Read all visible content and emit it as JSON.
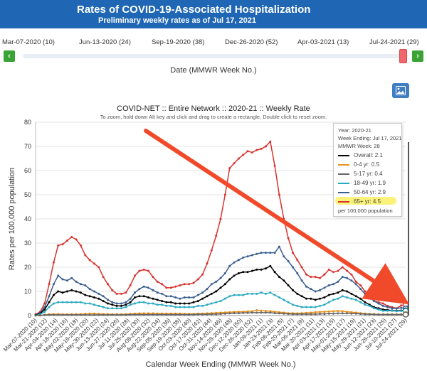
{
  "header": {
    "title": "Rates of COVID-19-Associated Hospitalization",
    "subtitle": "Preliminary weekly rates as of Jul 17, 2021"
  },
  "slider": {
    "week_labels": [
      "Mar-07-2020 (10)",
      "Jun-13-2020 (24)",
      "Sep-19-2020 (38)",
      "Dec-26-2020 (52)",
      "Apr-03-2021 (13)",
      "Jul-24-2021 (29)"
    ],
    "caption": "Date (MMWR Week No.)",
    "prev_icon": "chevron-left-icon",
    "next_icon": "chevron-right-icon",
    "handle_position": 1.0
  },
  "image_button_icon": "image-icon",
  "chart_title": "COVID-NET :: Entire Network :: 2020-21 :: Weekly Rate",
  "chart_subtitle": "To zoom, hold down Alt key and click and drag to create a rectangle. Double click to reset zoom.",
  "legend": {
    "year": "Year: 2020-21",
    "week_ending": "Week Ending: Jul 17, 2021",
    "mmwr_week": "MMWR Week: 28",
    "items": [
      {
        "label": "Overall:",
        "value": "2.1",
        "color": "#000000"
      },
      {
        "label": "0-4 yr:",
        "value": "0.5",
        "color": "#e8931e"
      },
      {
        "label": "5-17 yr:",
        "value": "0.4",
        "color": "#666666"
      },
      {
        "label": "18-49 yr:",
        "value": "1.9",
        "color": "#29a9c2"
      },
      {
        "label": "50-64 yr:",
        "value": "2.9",
        "color": "#3a5f8f"
      },
      {
        "label": "65+ yr:",
        "value": "4.5",
        "color": "#d7332e"
      }
    ],
    "footnote": "per 100,000 population",
    "highlight_color": "#fbf27a"
  },
  "annotation": {
    "arrow_color": "#f04a2a"
  },
  "chart_data": {
    "type": "line",
    "ylabel": "Rates per 100,000 population",
    "xlabel": "Calendar Week Ending (MMWR Week No.)",
    "ylim": [
      0,
      80
    ],
    "yticks": [
      0,
      10,
      20,
      30,
      40,
      50,
      60,
      70,
      80
    ],
    "x_tick_labels": [
      "Mar-07-2020 (10)",
      "Mar-21-2020 (12)",
      "Apr-04-2020 (14)",
      "Apr-18-2020 (16)",
      "May-02-2020 (18)",
      "May-16-2020 (20)",
      "May-30-2020 (22)",
      "Jun-13-2020 (24)",
      "Jun-27-2020 (26)",
      "Jul-11-2020 (28)",
      "Jul-25-2020 (30)",
      "Aug-08-2020 (32)",
      "Aug-22-2020 (34)",
      "Sep-05-2020 (36)",
      "Sep-19-2020 (38)",
      "Oct-03-2020 (40)",
      "Oct-17-2020 (42)",
      "Oct-31-2020 (44)",
      "Nov-14-2020 (46)",
      "Nov-28-2020 (48)",
      "Dec-12-2020 (50)",
      "Dec-26-2020 (52)",
      "Jan-09-2021 (1)",
      "Jan-23-2021 (3)",
      "Feb-06-2021 (5)",
      "Feb-20-2021 (7)",
      "Mar-06-2021 (9)",
      "Mar-20-2021 (11)",
      "Apr-03-2021 (13)",
      "Apr-17-2021 (15)",
      "May-01-2021 (17)",
      "May-15-2021 (19)",
      "May-29-2021 (21)",
      "Jun-12-2021 (23)",
      "Jun-26-2021 (25)",
      "Jul-10-2021 (27)",
      "Jul-24-2021 (29)"
    ],
    "series": [
      {
        "name": "65+ yr",
        "color": "#d7332e",
        "values": [
          0.5,
          1.5,
          5,
          13,
          22,
          29,
          29.5,
          31,
          32.5,
          31.5,
          29,
          25,
          23,
          21.5,
          20,
          16,
          13,
          10.5,
          9,
          9,
          9.5,
          12.5,
          16.5,
          18.5,
          19,
          18.5,
          16,
          14,
          13,
          11.5,
          11.5,
          12,
          12.5,
          13,
          13,
          13.5,
          15,
          17,
          21.5,
          27,
          33,
          40,
          50,
          61,
          63,
          65,
          66.5,
          68,
          67.5,
          68.5,
          69,
          70,
          72,
          62,
          50,
          40,
          32,
          26,
          23,
          20,
          17,
          16,
          16,
          15.5,
          17,
          19,
          18,
          18.5,
          20,
          18.5,
          17,
          14,
          12.5,
          10,
          8,
          6,
          5.5,
          5,
          4,
          3.5,
          3,
          4.2,
          4.5
        ]
      },
      {
        "name": "50-64 yr",
        "color": "#3a5f8f",
        "values": [
          0.3,
          1,
          3.5,
          8,
          13,
          16.5,
          15,
          14.5,
          15.5,
          14,
          13,
          12.5,
          11,
          10,
          9,
          8,
          6.5,
          5.5,
          5,
          5,
          5.5,
          7,
          9.5,
          11,
          12,
          11.5,
          10.5,
          9.5,
          9,
          8,
          8,
          7.5,
          7,
          7.5,
          7.5,
          7.5,
          8.5,
          9.5,
          11,
          13,
          14,
          15.5,
          17.5,
          20.5,
          22,
          23,
          24,
          24.5,
          25,
          25.5,
          26,
          26,
          26,
          26,
          28.5,
          24.5,
          22.5,
          20,
          17.5,
          14.5,
          12,
          11,
          10,
          10.5,
          11.5,
          12.5,
          13,
          14,
          16,
          15.5,
          14.5,
          13,
          11,
          9,
          7.5,
          6,
          5,
          4,
          3.5,
          3,
          2.9,
          3.2,
          2.9
        ]
      },
      {
        "name": "Overall",
        "color": "#000000",
        "values": [
          0.2,
          0.8,
          2.5,
          5.5,
          8.5,
          10,
          9.5,
          10,
          10.5,
          10,
          9.5,
          8.5,
          8,
          7.5,
          7,
          6,
          5,
          4.5,
          4,
          4,
          4.5,
          5.5,
          7.5,
          8,
          8,
          7.5,
          7,
          6.5,
          6,
          5.5,
          5.5,
          5,
          5,
          5,
          5,
          5.5,
          6,
          7,
          8,
          9,
          10,
          11.5,
          13,
          15,
          16.5,
          17.5,
          18,
          18,
          18.5,
          19,
          19,
          19.5,
          20.5,
          18,
          16,
          14.5,
          12.5,
          10.5,
          9,
          8,
          7,
          7,
          6.5,
          7,
          7.5,
          8.5,
          9,
          9.5,
          10.5,
          10,
          9,
          8,
          7,
          5.5,
          4.5,
          3.5,
          3,
          2.5,
          2.3,
          2.1,
          2,
          2.1,
          2.1
        ]
      },
      {
        "name": "18-49 yr",
        "color": "#29a9c2",
        "values": [
          0.1,
          0.5,
          1.5,
          3.5,
          5,
          5.5,
          5.5,
          5.5,
          5.5,
          5.5,
          5.5,
          5,
          5,
          4.5,
          4,
          3.5,
          3,
          3,
          3,
          3,
          3.5,
          4.5,
          5,
          5.5,
          5.5,
          5,
          5,
          4.5,
          4.5,
          4,
          4,
          3.5,
          3.5,
          3.5,
          3.5,
          3.5,
          4,
          4,
          4.5,
          5,
          5.5,
          6,
          7,
          8,
          8.5,
          8.5,
          8.5,
          9,
          9,
          9,
          9.5,
          9,
          9.5,
          8.5,
          7.5,
          6.5,
          5.5,
          4.5,
          4,
          3.5,
          3.5,
          3.5,
          3.5,
          4,
          4.5,
          5.5,
          6.5,
          7,
          8,
          7.5,
          7,
          6.5,
          5.5,
          4.5,
          4,
          3,
          2.5,
          2,
          2,
          2,
          1.8,
          1.9,
          1.9
        ]
      },
      {
        "name": "0-4 yr",
        "color": "#e8931e",
        "values": [
          0,
          0.1,
          0.3,
          0.5,
          0.6,
          0.6,
          0.5,
          0.5,
          0.5,
          0.5,
          0.6,
          0.7,
          0.8,
          0.8,
          0.7,
          0.6,
          0.6,
          0.5,
          0.5,
          0.5,
          0.6,
          0.7,
          0.8,
          0.9,
          0.9,
          0.9,
          0.9,
          0.8,
          0.8,
          0.8,
          0.8,
          0.8,
          0.8,
          0.7,
          0.7,
          0.7,
          0.8,
          0.8,
          0.9,
          1,
          1.1,
          1.2,
          1.3,
          1.4,
          1.5,
          1.6,
          1.6,
          1.7,
          1.8,
          2.2,
          2,
          1.9,
          1.8,
          1.6,
          1.4,
          1.2,
          1,
          1,
          0.9,
          1,
          1.1,
          1.2,
          1.4,
          1.5,
          1.6,
          1.7,
          1.8,
          1.9,
          1.8,
          1.6,
          1.4,
          1.2,
          1,
          0.8,
          0.7,
          0.6,
          0.5,
          0.5,
          0.5,
          0.5,
          0.5,
          0.5,
          0.5
        ]
      },
      {
        "name": "5-17 yr",
        "color": "#666666",
        "values": [
          0,
          0.1,
          0.2,
          0.3,
          0.3,
          0.3,
          0.3,
          0.3,
          0.3,
          0.3,
          0.3,
          0.3,
          0.3,
          0.3,
          0.3,
          0.3,
          0.3,
          0.3,
          0.3,
          0.3,
          0.3,
          0.4,
          0.4,
          0.4,
          0.4,
          0.4,
          0.4,
          0.4,
          0.4,
          0.4,
          0.4,
          0.4,
          0.4,
          0.4,
          0.4,
          0.4,
          0.5,
          0.5,
          0.5,
          0.6,
          0.6,
          0.7,
          0.8,
          0.9,
          1,
          1,
          1.1,
          1.1,
          1.2,
          1.2,
          1.2,
          1.2,
          1.2,
          1,
          0.9,
          0.8,
          0.7,
          0.6,
          0.6,
          0.6,
          0.6,
          0.6,
          0.6,
          0.7,
          0.7,
          0.8,
          0.8,
          0.9,
          0.9,
          0.9,
          0.8,
          0.8,
          0.7,
          0.6,
          0.5,
          0.5,
          0.4,
          0.4,
          0.4,
          0.4,
          0.4,
          0.4,
          0.4
        ]
      }
    ]
  }
}
